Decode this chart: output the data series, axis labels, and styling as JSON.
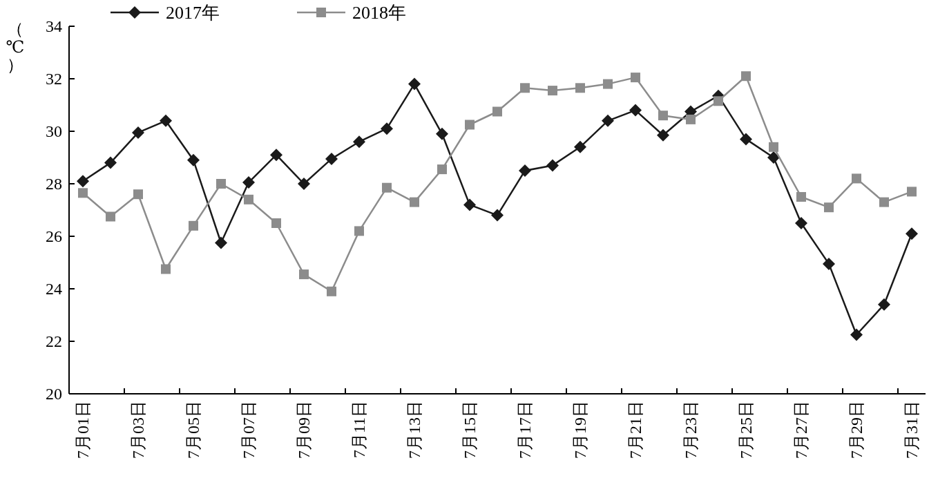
{
  "chart_data": {
    "type": "line",
    "ylabel": "（℃）",
    "categories": [
      "7月01日",
      null,
      "7月03日",
      null,
      "7月05日",
      null,
      "7月07日",
      null,
      "7月09日",
      null,
      "7月11日",
      null,
      "7月13日",
      null,
      "7月15日",
      null,
      "7月17日",
      null,
      "7月19日",
      null,
      "7月21日",
      null,
      "7月23日",
      null,
      "7月25日",
      null,
      "7月27日",
      null,
      "7月29日",
      null,
      "7月31日"
    ],
    "series": [
      {
        "name": "2017年",
        "color": "#1a1a1a",
        "marker": "diamond",
        "values": [
          28.1,
          28.8,
          29.95,
          30.4,
          28.9,
          25.75,
          28.05,
          29.1,
          28.0,
          28.95,
          29.6,
          30.1,
          31.8,
          29.9,
          27.2,
          26.8,
          28.5,
          28.7,
          29.4,
          30.4,
          30.8,
          29.85,
          30.75,
          31.35,
          29.7,
          29.0,
          26.5,
          24.95,
          22.25,
          23.4,
          26.1
        ]
      },
      {
        "name": "2018年",
        "color": "#8c8c8c",
        "marker": "square",
        "values": [
          27.65,
          26.75,
          27.6,
          24.75,
          26.4,
          28.0,
          27.4,
          26.5,
          24.55,
          23.9,
          26.2,
          27.85,
          27.3,
          28.55,
          30.25,
          30.75,
          31.65,
          31.55,
          31.65,
          31.8,
          32.05,
          30.6,
          30.45,
          31.15,
          32.1,
          29.4,
          27.5,
          27.1,
          28.2,
          27.3,
          27.7
        ]
      }
    ],
    "ylim": [
      20,
      34
    ],
    "yticks": [
      20,
      22,
      24,
      26,
      28,
      30,
      32,
      34
    ],
    "grid": false,
    "legend": "top left",
    "line_style": "solid"
  }
}
